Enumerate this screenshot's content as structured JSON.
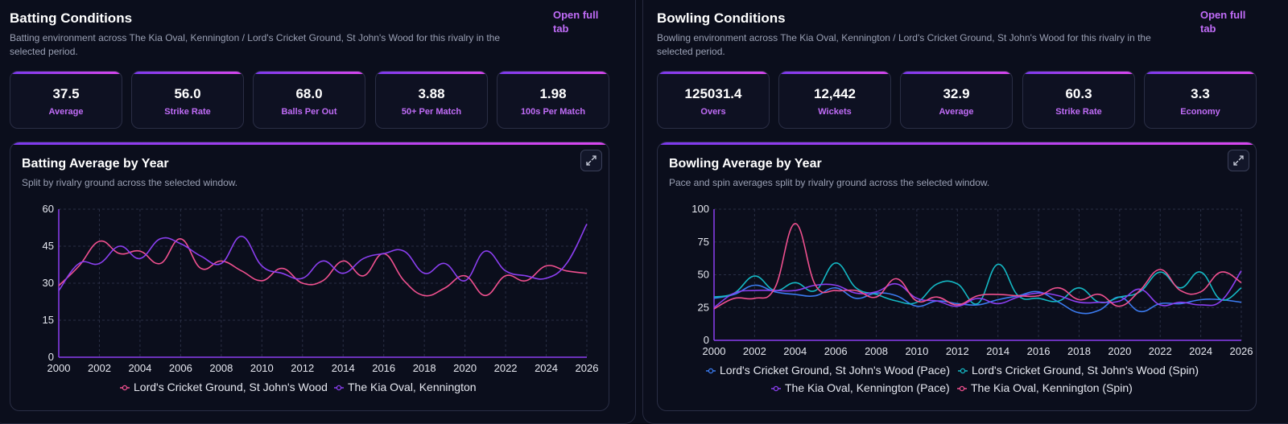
{
  "batting": {
    "title": "Batting Conditions",
    "subtitle": "Batting environment across The Kia Oval, Kennington / Lord's Cricket Ground, St John's Wood for this rivalry in the selected period.",
    "open_link": "Open full tab",
    "kpis": [
      {
        "value": "37.5",
        "label": "Average"
      },
      {
        "value": "56.0",
        "label": "Strike Rate"
      },
      {
        "value": "68.0",
        "label": "Balls Per Out"
      },
      {
        "value": "3.88",
        "label": "50+ Per Match"
      },
      {
        "value": "1.98",
        "label": "100s Per Match"
      }
    ],
    "chart_title": "Batting Average by Year",
    "chart_subtitle": "Split by rivalry ground across the selected window."
  },
  "bowling": {
    "title": "Bowling Conditions",
    "subtitle": "Bowling environment across The Kia Oval, Kennington / Lord's Cricket Ground, St John's Wood for this rivalry in the selected period.",
    "open_link": "Open full tab",
    "kpis": [
      {
        "value": "125031.4",
        "label": "Overs"
      },
      {
        "value": "12,442",
        "label": "Wickets"
      },
      {
        "value": "32.9",
        "label": "Average"
      },
      {
        "value": "60.3",
        "label": "Strike Rate"
      },
      {
        "value": "3.3",
        "label": "Economy"
      }
    ],
    "chart_title": "Bowling Average by Year",
    "chart_subtitle": "Pace and spin averages split by rivalry ground across the selected window."
  },
  "icons": {
    "expand": "expand-icon"
  },
  "colors": {
    "accent": "#c06cf7",
    "pink": "#f0508f",
    "purple": "#8b3ff0",
    "blue": "#3b7bf0",
    "teal": "#14b8c4"
  },
  "chart_data": [
    {
      "type": "line",
      "title": "Batting Average by Year",
      "x": [
        2000,
        2001,
        2002,
        2003,
        2004,
        2005,
        2006,
        2007,
        2008,
        2009,
        2010,
        2011,
        2012,
        2013,
        2014,
        2015,
        2016,
        2017,
        2018,
        2019,
        2020,
        2021,
        2022,
        2023,
        2024,
        2025,
        2026
      ],
      "x_ticks": [
        2000,
        2002,
        2004,
        2006,
        2008,
        2010,
        2012,
        2014,
        2016,
        2018,
        2020,
        2022,
        2024,
        2026
      ],
      "ylim": [
        0,
        60
      ],
      "y_ticks": [
        0,
        15,
        30,
        45,
        60
      ],
      "grid": true,
      "legend": "bottom",
      "series": [
        {
          "name": "Lord's Cricket Ground, St John's Wood",
          "color": "#f0508f",
          "values": [
            29,
            37,
            47,
            42,
            43,
            38,
            48,
            36,
            39,
            35,
            31,
            36,
            30,
            31,
            39,
            33,
            42,
            31,
            25,
            28,
            33,
            25,
            33,
            31,
            37,
            35,
            34
          ]
        },
        {
          "name": "The Kia Oval, Kennington",
          "color": "#8b3ff0",
          "values": [
            27,
            38,
            38,
            45,
            40,
            48,
            46,
            41,
            38,
            49,
            37,
            34,
            32,
            39,
            34,
            40,
            42,
            43,
            34,
            38,
            31,
            43,
            35,
            33,
            32,
            38,
            54
          ]
        }
      ]
    },
    {
      "type": "line",
      "title": "Bowling Average by Year",
      "x": [
        2000,
        2001,
        2002,
        2003,
        2004,
        2005,
        2006,
        2007,
        2008,
        2009,
        2010,
        2011,
        2012,
        2013,
        2014,
        2015,
        2016,
        2017,
        2018,
        2019,
        2020,
        2021,
        2022,
        2023,
        2024,
        2025,
        2026
      ],
      "x_ticks": [
        2000,
        2002,
        2004,
        2006,
        2008,
        2010,
        2012,
        2014,
        2016,
        2018,
        2020,
        2022,
        2024,
        2026
      ],
      "ylim": [
        0,
        100
      ],
      "y_ticks": [
        0,
        25,
        50,
        75,
        100
      ],
      "grid": true,
      "legend": "bottom",
      "series": [
        {
          "name": "Lord's Cricket Ground, St John's Wood (Pace)",
          "color": "#3b7bf0",
          "values": [
            32,
            35,
            42,
            37,
            35,
            34,
            40,
            32,
            36,
            34,
            26,
            30,
            28,
            27,
            31,
            34,
            37,
            29,
            21,
            23,
            33,
            22,
            28,
            28,
            31,
            31,
            29
          ]
        },
        {
          "name": "Lord's Cricket Ground, St John's Wood (Spin)",
          "color": "#14b8c4",
          "values": [
            33,
            36,
            49,
            38,
            44,
            38,
            59,
            40,
            35,
            30,
            29,
            43,
            43,
            28,
            58,
            34,
            32,
            30,
            40,
            29,
            33,
            37,
            52,
            40,
            52,
            31,
            40
          ]
        },
        {
          "name": "The Kia Oval, Kennington (Pace)",
          "color": "#8b3ff0",
          "values": [
            25,
            36,
            38,
            38,
            38,
            42,
            42,
            36,
            37,
            43,
            32,
            30,
            26,
            32,
            28,
            33,
            36,
            34,
            29,
            29,
            30,
            39,
            27,
            29,
            27,
            30,
            53
          ]
        },
        {
          "name": "The Kia Oval, Kennington (Spin)",
          "color": "#f0508f",
          "values": [
            24,
            32,
            32,
            40,
            89,
            42,
            38,
            38,
            33,
            47,
            30,
            33,
            27,
            34,
            35,
            34,
            34,
            40,
            31,
            35,
            26,
            38,
            54,
            38,
            37,
            52,
            44
          ]
        }
      ]
    }
  ]
}
